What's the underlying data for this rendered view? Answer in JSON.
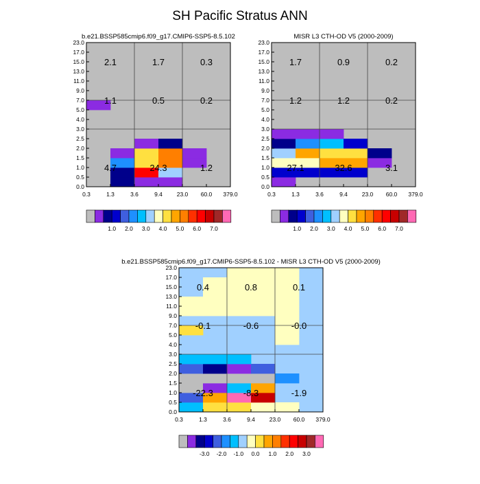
{
  "figure": {
    "title": "SH Pacific Stratus ANN"
  },
  "palettes": {
    "abs": [
      "#bdbdbd",
      "#8b2be2",
      "#00008b",
      "#0000cd",
      "#3f5fdf",
      "#1e90ff",
      "#00bfff",
      "#a0d0ff",
      "#ffffc0",
      "#ffe040",
      "#ffa500",
      "#ff7f00",
      "#ff3000",
      "#ff0000",
      "#c80000",
      "#a02828",
      "#ff69b4"
    ],
    "diff": [
      "#bdbdbd",
      "#8b2be2",
      "#00008b",
      "#0000cd",
      "#3f5fdf",
      "#1e90ff",
      "#00bfff",
      "#a0d0ff",
      "#ffffc0",
      "#ffe040",
      "#ffa500",
      "#ff7f00",
      "#ff3000",
      "#ff0000",
      "#c80000",
      "#a02828",
      "#ff69b4"
    ]
  },
  "chart_data": [
    {
      "type": "heatmap",
      "title": "b.e21.BSSP585cmip6.f09_g17.CMIP6-SSP5-8.5.102",
      "x_ticks": [
        "0.3",
        "1.3",
        "3.6",
        "9.4",
        "23.0",
        "60.0",
        "379.0"
      ],
      "y_ticks": [
        "0.0",
        "0.5",
        "1.0",
        "1.5",
        "2.0",
        "2.5",
        "3.0",
        "4.0",
        "5.0",
        "7.0",
        "9.0",
        "11.0",
        "13.0",
        "15.0",
        "17.0",
        "23.0"
      ],
      "background": 0,
      "cells": [
        {
          "x": 1,
          "y": 0,
          "v": 2
        },
        {
          "x": 2,
          "y": 0,
          "v": 1
        },
        {
          "x": 3,
          "y": 0,
          "v": 1
        },
        {
          "x": 1,
          "y": 1,
          "v": 2
        },
        {
          "x": 2,
          "y": 1,
          "v": 13
        },
        {
          "x": 3,
          "y": 1,
          "v": 7
        },
        {
          "x": 1,
          "y": 2,
          "v": 5
        },
        {
          "x": 2,
          "y": 2,
          "v": 9
        },
        {
          "x": 3,
          "y": 2,
          "v": 11
        },
        {
          "x": 4,
          "y": 2,
          "v": 1
        },
        {
          "x": 1,
          "y": 3,
          "v": 1
        },
        {
          "x": 2,
          "y": 3,
          "v": 9
        },
        {
          "x": 3,
          "y": 3,
          "v": 11
        },
        {
          "x": 4,
          "y": 3,
          "v": 1
        },
        {
          "x": 2,
          "y": 4,
          "v": 1
        },
        {
          "x": 3,
          "y": 4,
          "v": 2
        },
        {
          "x": 0,
          "y": 8,
          "v": 1
        }
      ],
      "annotations": [
        {
          "x": 0.5,
          "y": 1.5,
          "text": "4.7"
        },
        {
          "x": 0.5,
          "y": 8.5,
          "text": "1.1"
        },
        {
          "x": 0.5,
          "y": 12.5,
          "text": "2.1"
        },
        {
          "x": 2.5,
          "y": 1.5,
          "text": "24.3"
        },
        {
          "x": 2.5,
          "y": 8.5,
          "text": "0.5"
        },
        {
          "x": 2.5,
          "y": 12.5,
          "text": "1.7"
        },
        {
          "x": 4.5,
          "y": 1.5,
          "text": "1.2"
        },
        {
          "x": 4.5,
          "y": 8.5,
          "text": "0.2"
        },
        {
          "x": 4.5,
          "y": 12.5,
          "text": "0.3"
        }
      ],
      "colorbar": {
        "palette": "abs",
        "labels": [
          "1.0",
          "2.0",
          "3.0",
          "4.0",
          "5.0",
          "6.0",
          "7.0"
        ]
      }
    },
    {
      "type": "heatmap",
      "title": "MISR L3 CTH-OD V5 (2000-2009)",
      "x_ticks": [
        "0.3",
        "1.3",
        "3.6",
        "9.4",
        "23.0",
        "60.0",
        "379.0"
      ],
      "y_ticks": [
        "0.0",
        "0.5",
        "1.0",
        "1.5",
        "2.0",
        "2.5",
        "3.0",
        "4.0",
        "5.0",
        "7.0",
        "9.0",
        "11.0",
        "13.0",
        "15.0",
        "17.0",
        "23.0"
      ],
      "background": 0,
      "cells": [
        {
          "x": 0,
          "y": 0,
          "v": 1
        },
        {
          "x": 0,
          "y": 1,
          "v": 3
        },
        {
          "x": 1,
          "y": 1,
          "v": 3
        },
        {
          "x": 2,
          "y": 1,
          "v": 3
        },
        {
          "x": 3,
          "y": 1,
          "v": 3
        },
        {
          "x": 0,
          "y": 2,
          "v": 8
        },
        {
          "x": 1,
          "y": 2,
          "v": 8
        },
        {
          "x": 2,
          "y": 2,
          "v": 10
        },
        {
          "x": 3,
          "y": 2,
          "v": 10
        },
        {
          "x": 4,
          "y": 2,
          "v": 1
        },
        {
          "x": 0,
          "y": 3,
          "v": 7
        },
        {
          "x": 1,
          "y": 3,
          "v": 10
        },
        {
          "x": 2,
          "y": 3,
          "v": 9
        },
        {
          "x": 3,
          "y": 3,
          "v": 9
        },
        {
          "x": 4,
          "y": 3,
          "v": 2
        },
        {
          "x": 0,
          "y": 4,
          "v": 2
        },
        {
          "x": 1,
          "y": 4,
          "v": 5
        },
        {
          "x": 2,
          "y": 4,
          "v": 6
        },
        {
          "x": 3,
          "y": 4,
          "v": 3
        },
        {
          "x": 0,
          "y": 5,
          "v": 1
        },
        {
          "x": 1,
          "y": 5,
          "v": 1
        },
        {
          "x": 2,
          "y": 5,
          "v": 1
        }
      ],
      "annotations": [
        {
          "x": 0.5,
          "y": 1.5,
          "text": "27.1"
        },
        {
          "x": 0.5,
          "y": 8.5,
          "text": "1.2"
        },
        {
          "x": 0.5,
          "y": 12.5,
          "text": "1.7"
        },
        {
          "x": 2.5,
          "y": 1.5,
          "text": "32.6"
        },
        {
          "x": 2.5,
          "y": 8.5,
          "text": "1.2"
        },
        {
          "x": 2.5,
          "y": 12.5,
          "text": "0.9"
        },
        {
          "x": 4.5,
          "y": 1.5,
          "text": "3.1"
        },
        {
          "x": 4.5,
          "y": 8.5,
          "text": "0.2"
        },
        {
          "x": 4.5,
          "y": 12.5,
          "text": "0.2"
        }
      ],
      "colorbar": {
        "palette": "abs",
        "labels": [
          "1.0",
          "2.0",
          "3.0",
          "4.0",
          "5.0",
          "6.0",
          "7.0"
        ]
      }
    },
    {
      "type": "heatmap",
      "title": "b.e21.BSSP585cmip6.f09_g17.CMIP6-SSP5-8.5.102 - MISR L3 CTH-OD V5 (2000-2009)",
      "x_ticks": [
        "0.3",
        "1.3",
        "3.6",
        "9.4",
        "23.0",
        "60.0",
        "379.0"
      ],
      "y_ticks": [
        "0.0",
        "0.5",
        "1.0",
        "1.5",
        "2.0",
        "2.5",
        "3.0",
        "4.0",
        "5.0",
        "7.0",
        "9.0",
        "11.0",
        "13.0",
        "15.0",
        "17.0",
        "23.0"
      ],
      "background": 7,
      "cells": [
        {
          "x": 0,
          "y": 0,
          "v": 6
        },
        {
          "x": 1,
          "y": 0,
          "v": 9
        },
        {
          "x": 2,
          "y": 0,
          "v": 9
        },
        {
          "x": 3,
          "y": 0,
          "v": 8
        },
        {
          "x": 4,
          "y": 0,
          "v": 8
        },
        {
          "x": 0,
          "y": 1,
          "v": 4
        },
        {
          "x": 1,
          "y": 1,
          "v": 10
        },
        {
          "x": 2,
          "y": 1,
          "v": 16
        },
        {
          "x": 3,
          "y": 1,
          "v": 14
        },
        {
          "x": 0,
          "y": 2,
          "v": 0
        },
        {
          "x": 1,
          "y": 2,
          "v": 1
        },
        {
          "x": 2,
          "y": 2,
          "v": 6
        },
        {
          "x": 3,
          "y": 2,
          "v": 10
        },
        {
          "x": 0,
          "y": 3,
          "v": 0
        },
        {
          "x": 1,
          "y": 3,
          "v": 0
        },
        {
          "x": 2,
          "y": 3,
          "v": 0
        },
        {
          "x": 3,
          "y": 3,
          "v": 0
        },
        {
          "x": 4,
          "y": 3,
          "v": 5
        },
        {
          "x": 0,
          "y": 4,
          "v": 4
        },
        {
          "x": 1,
          "y": 4,
          "v": 2
        },
        {
          "x": 2,
          "y": 4,
          "v": 1
        },
        {
          "x": 3,
          "y": 4,
          "v": 4
        },
        {
          "x": 0,
          "y": 5,
          "v": 6
        },
        {
          "x": 1,
          "y": 5,
          "v": 6
        },
        {
          "x": 2,
          "y": 5,
          "v": 6
        },
        {
          "x": 0,
          "y": 8,
          "v": 9
        },
        {
          "x": 0,
          "y": 10,
          "v": 8
        },
        {
          "x": 1,
          "y": 10,
          "v": 8
        },
        {
          "x": 2,
          "y": 10,
          "v": 8
        },
        {
          "x": 3,
          "y": 10,
          "v": 8
        },
        {
          "x": 0,
          "y": 11,
          "v": 8
        },
        {
          "x": 1,
          "y": 11,
          "v": 8
        },
        {
          "x": 2,
          "y": 11,
          "v": 8
        },
        {
          "x": 3,
          "y": 11,
          "v": 8
        },
        {
          "x": 1,
          "y": 12,
          "v": 8
        },
        {
          "x": 2,
          "y": 12,
          "v": 8
        },
        {
          "x": 3,
          "y": 12,
          "v": 8
        },
        {
          "x": 1,
          "y": 13,
          "v": 8
        },
        {
          "x": 2,
          "y": 13,
          "v": 8
        },
        {
          "x": 3,
          "y": 13,
          "v": 8
        },
        {
          "x": 2,
          "y": 14,
          "v": 8
        },
        {
          "x": 3,
          "y": 14,
          "v": 8
        },
        {
          "x": 4,
          "y": 7,
          "v": 8
        },
        {
          "x": 4,
          "y": 8,
          "v": 8
        },
        {
          "x": 4,
          "y": 9,
          "v": 8
        },
        {
          "x": 4,
          "y": 10,
          "v": 8
        },
        {
          "x": 4,
          "y": 11,
          "v": 8
        },
        {
          "x": 4,
          "y": 12,
          "v": 8
        },
        {
          "x": 4,
          "y": 13,
          "v": 8
        },
        {
          "x": 4,
          "y": 14,
          "v": 8
        }
      ],
      "annotations": [
        {
          "x": 0.5,
          "y": 1.5,
          "text": "-22.3"
        },
        {
          "x": 0.5,
          "y": 8.5,
          "text": "-0.1"
        },
        {
          "x": 0.5,
          "y": 12.5,
          "text": "0.4"
        },
        {
          "x": 2.5,
          "y": 1.5,
          "text": "-8.3"
        },
        {
          "x": 2.5,
          "y": 8.5,
          "text": "-0.6"
        },
        {
          "x": 2.5,
          "y": 12.5,
          "text": "0.8"
        },
        {
          "x": 4.5,
          "y": 1.5,
          "text": "-1.9"
        },
        {
          "x": 4.5,
          "y": 8.5,
          "text": "-0.0"
        },
        {
          "x": 4.5,
          "y": 12.5,
          "text": "0.1"
        }
      ],
      "colorbar": {
        "palette": "diff",
        "labels": [
          "-3.0",
          "-2.0",
          "-1.0",
          "0.0",
          "1.0",
          "2.0",
          "3.0"
        ]
      }
    }
  ]
}
